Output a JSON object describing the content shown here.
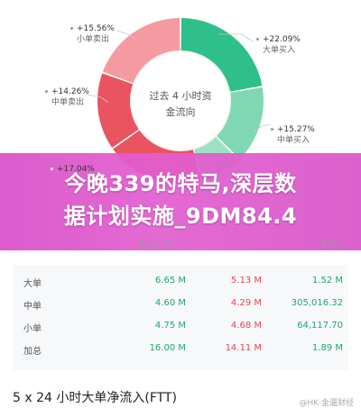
{
  "donut": {
    "center_line1": "过去 4 小时资",
    "center_line2": "金流向",
    "colors": {
      "green_dark": "#2fbf8a",
      "green_light": "#7fd8b3",
      "red_dark": "#ea5360",
      "red_light": "#f59aa0"
    },
    "segments": [
      {
        "label": "大单买入",
        "pct": "+22.09%"
      },
      {
        "label": "中单买入",
        "pct": "+15.27%"
      },
      {
        "label": "小单卖出",
        "pct": "+15.56%"
      },
      {
        "label": "中单卖出",
        "pct": "+14.26%"
      },
      {
        "label": "",
        "pct": "+17.04%"
      }
    ]
  },
  "banner": {
    "text_line1": "今晚339的特马,深层数",
    "text_line2": "据计划实施_9DM84.4"
  },
  "table": {
    "headers": {
      "buy": "买入(FTT)",
      "net": "净流入"
    },
    "rows": [
      {
        "label": "大单",
        "buy": "6.65 M",
        "sell": "5.13 M",
        "net": "1.52 M"
      },
      {
        "label": "中单",
        "buy": "4.60 M",
        "sell": "4.29 M",
        "net": "305,016.32"
      },
      {
        "label": "小单",
        "buy": "4.75 M",
        "sell": "4.68 M",
        "net": "64,117.70"
      },
      {
        "label": "加总",
        "buy": "16.00 M",
        "sell": "14.11 M",
        "net": "1.89 M"
      }
    ]
  },
  "bottom": {
    "title": "5 x 24 小时大单净流入(FTT)",
    "watermark": "@HK·金遛财经"
  }
}
